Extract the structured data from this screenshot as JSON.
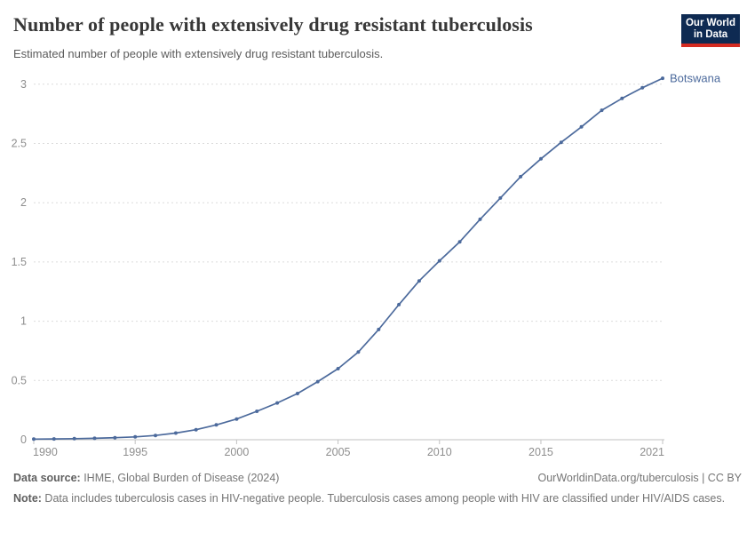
{
  "header": {
    "title": "Number of people with extensively drug resistant tuberculosis",
    "subtitle": "Estimated number of people with extensively drug resistant tuberculosis.",
    "logo_line1": "Our World",
    "logo_line2": "in Data"
  },
  "chart_data": {
    "type": "line",
    "title": "Number of people with extensively drug resistant tuberculosis",
    "grid": "horizontal-dashed",
    "legend_position": "end-of-line-label",
    "x_axis": {
      "range": [
        1990,
        2021
      ],
      "ticks": [
        1990,
        1995,
        2000,
        2005,
        2010,
        2015,
        2021
      ]
    },
    "y_axis": {
      "range": [
        0,
        3.05
      ],
      "ticks": [
        0,
        0.5,
        1,
        1.5,
        2,
        2.5,
        3
      ]
    },
    "series": [
      {
        "name": "Botswana",
        "color": "#4c6a9c",
        "x": [
          1990,
          1991,
          1992,
          1993,
          1994,
          1995,
          1996,
          1997,
          1998,
          1999,
          2000,
          2001,
          2002,
          2003,
          2004,
          2005,
          2006,
          2007,
          2008,
          2009,
          2010,
          2011,
          2012,
          2013,
          2014,
          2015,
          2016,
          2017,
          2018,
          2019,
          2020,
          2021
        ],
        "values": [
          0.005,
          0.007,
          0.009,
          0.012,
          0.017,
          0.024,
          0.036,
          0.056,
          0.085,
          0.125,
          0.175,
          0.24,
          0.31,
          0.39,
          0.49,
          0.6,
          0.74,
          0.93,
          1.14,
          1.34,
          1.51,
          1.67,
          1.86,
          2.04,
          2.22,
          2.37,
          2.51,
          2.64,
          2.78,
          2.88,
          2.97,
          3.05
        ]
      }
    ]
  },
  "footer": {
    "source_label": "Data source:",
    "source_text": " IHME, Global Burden of Disease (2024)",
    "attribution": "OurWorldinData.org/tuberculosis | CC BY",
    "note_label": "Note:",
    "note_text": " Data includes tuberculosis cases in HIV-negative people. Tuberculosis cases among people with HIV are classified under HIV/AIDS cases."
  },
  "colors": {
    "accent_line": "#4c6a9c",
    "logo_navy": "#0e2a52",
    "logo_red": "#d42b21",
    "title_text": "#373737",
    "subtitle_text": "#5b5b5b",
    "axis_text": "#8e8e8e",
    "gridline": "#dcdcdc",
    "axis_line": "#c2c2c2",
    "footer_text": "#757575"
  }
}
